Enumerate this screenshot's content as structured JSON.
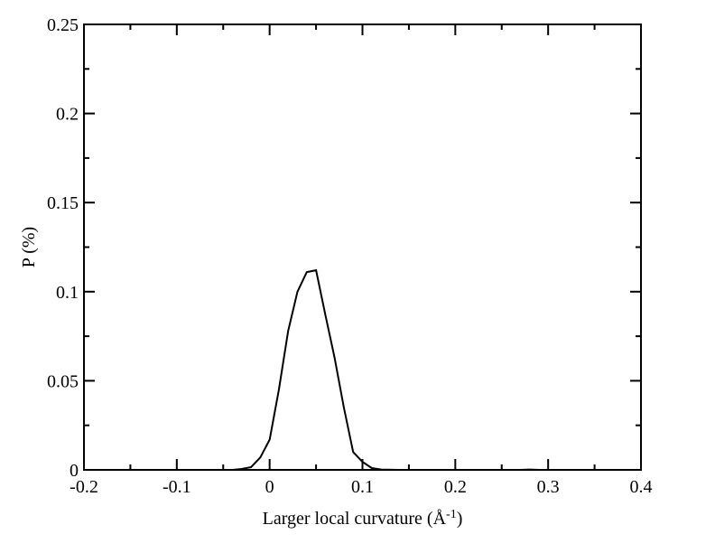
{
  "chart_data": {
    "type": "line",
    "title": "",
    "xlabel": "Larger local curvature (Å",
    "xlabel_superscript": "-1",
    "xlabel_suffix": ")",
    "ylabel": "P (%)",
    "xlim": [
      -0.2,
      0.4
    ],
    "ylim": [
      0,
      0.25
    ],
    "xticks": [
      -0.2,
      -0.1,
      0,
      0.1,
      0.2,
      0.3,
      0.4
    ],
    "xtick_labels": [
      "-0.2",
      "-0.1",
      "0",
      "0.1",
      "0.2",
      "0.3",
      "0.4"
    ],
    "yticks": [
      0,
      0.05,
      0.1,
      0.15,
      0.2,
      0.25
    ],
    "ytick_labels": [
      "0",
      "0.05",
      "0.1",
      "0.15",
      "0.2",
      "0.25"
    ],
    "grid": false,
    "legend": "none",
    "line_color": "#000000",
    "series": [
      {
        "x": [
          -0.06,
          -0.04,
          -0.03,
          -0.02,
          -0.01,
          0.0,
          0.01,
          0.02,
          0.03,
          0.04,
          0.05,
          0.06,
          0.07,
          0.08,
          0.09,
          0.1,
          0.11,
          0.12,
          0.14,
          0.16,
          0.2,
          0.27,
          0.28,
          0.29,
          0.3
        ],
        "y": [
          0.0,
          0.0,
          0.0005,
          0.0015,
          0.007,
          0.017,
          0.045,
          0.078,
          0.1,
          0.111,
          0.112,
          0.087,
          0.063,
          0.035,
          0.01,
          0.0045,
          0.001,
          0.0002,
          0.0,
          0.0,
          0.0,
          0.0,
          0.0002,
          0.0,
          0.0
        ]
      }
    ]
  }
}
